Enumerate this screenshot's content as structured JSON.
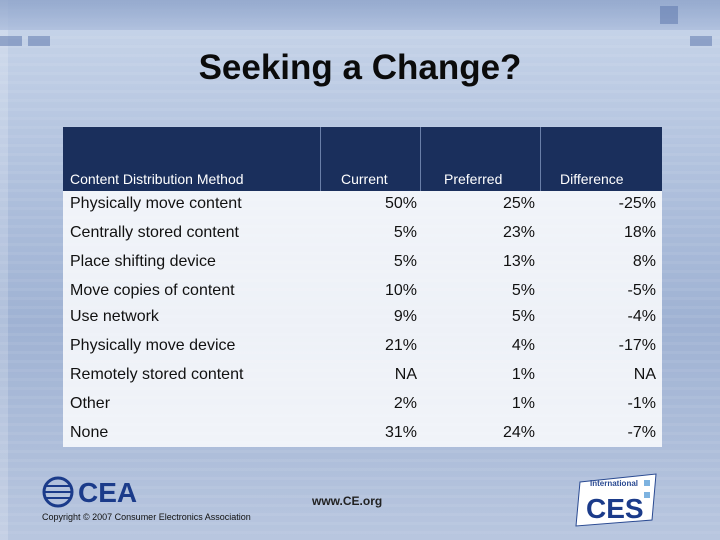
{
  "slide": {
    "title": "Seeking a Change?"
  },
  "table": {
    "headers": {
      "method": "Content Distribution Method",
      "current": "Current",
      "preferred": "Preferred",
      "difference": "Difference"
    },
    "rows": [
      {
        "method": "Physically move content",
        "current": "50%",
        "preferred": "25%",
        "difference": "-25%"
      },
      {
        "method": "Centrally stored content",
        "current": "5%",
        "preferred": "23%",
        "difference": "18%"
      },
      {
        "method": "Place shifting device",
        "current": "5%",
        "preferred": "13%",
        "difference": "8%"
      },
      {
        "method": "Move copies of content",
        "current": "10%",
        "preferred": "5%",
        "difference": "-5%"
      },
      {
        "method": "Use network",
        "current": "9%",
        "preferred": "5%",
        "difference": "-4%"
      },
      {
        "method": "Physically move device",
        "current": "21%",
        "preferred": "4%",
        "difference": "-17%"
      },
      {
        "method": "Remotely stored content",
        "current": "NA",
        "preferred": "1%",
        "difference": "NA"
      },
      {
        "method": "Other",
        "current": "2%",
        "preferred": "1%",
        "difference": "-1%"
      },
      {
        "method": "None",
        "current": "31%",
        "preferred": "24%",
        "difference": "-7%"
      }
    ]
  },
  "footer": {
    "logo_text": "CEA",
    "copyright": "Copyright © 2007 Consumer Electronics Association",
    "website": "www.CE.org",
    "ces_badge_top": "International",
    "ces_badge_main": "CES"
  },
  "colors": {
    "header_bg": "#1a2f5c",
    "header_text": "#ffffff",
    "cea_blue": "#1b3b8a"
  }
}
